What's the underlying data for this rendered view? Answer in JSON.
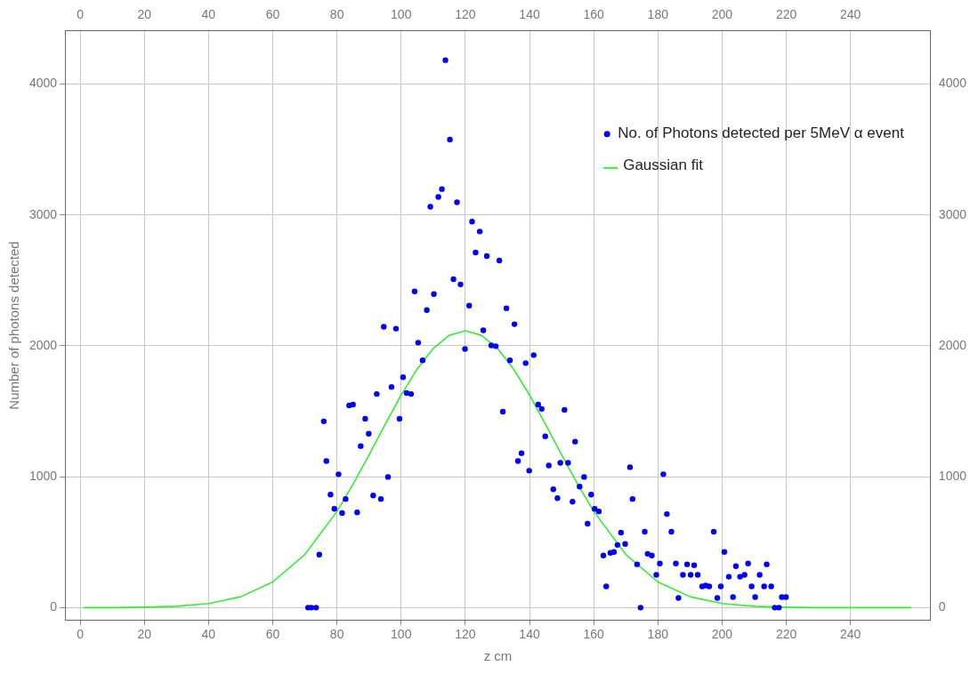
{
  "chart_data": {
    "type": "scatter",
    "xlabel": "z cm",
    "ylabel": "Number of photons detected",
    "xlim": [
      -4.7,
      265
    ],
    "xticks": [
      0,
      20,
      40,
      60,
      80,
      100,
      120,
      140,
      160,
      180,
      200,
      220,
      240
    ],
    "x2lim": [
      -4.7,
      265
    ],
    "x2ticks": [
      0,
      20,
      40,
      60,
      80,
      100,
      120,
      140,
      160,
      180,
      200,
      220,
      240
    ],
    "ylim": [
      -94,
      4405
    ],
    "yticks": [
      0,
      1000,
      2000,
      3000,
      4000
    ],
    "y2lim": [
      -94,
      4405
    ],
    "y2ticks": [
      0,
      1000,
      2000,
      3000,
      4000
    ],
    "grid": true,
    "legend": "top right",
    "marker": "circle",
    "series": [
      {
        "name": "No. of Photons detected per 5MeV α event",
        "type": "scatter",
        "color": "#0000ff",
        "x": [
          71,
          72,
          73.5,
          74.5,
          75.9,
          76.7,
          78,
          79.2,
          80.5,
          81.6,
          82.7,
          83.8,
          85,
          86.3,
          87.4,
          88.8,
          89.9,
          91.3,
          92.4,
          93.7,
          94.6,
          95.9,
          97,
          98.4,
          99.5,
          100.6,
          101.7,
          103.1,
          104.2,
          105.3,
          106.7,
          108,
          109.1,
          110.2,
          111.6,
          112.7,
          113.8,
          115.2,
          116.3,
          117.4,
          118.5,
          119.9,
          121.2,
          122.1,
          123.2,
          124.5,
          125.6,
          126.7,
          128.1,
          129.5,
          130.6,
          131.7,
          132.8,
          133.9,
          135.3,
          136.4,
          137.5,
          138.8,
          139.9,
          141.3,
          142.7,
          143.8,
          144.9,
          146,
          147.4,
          148.7,
          149.6,
          150.9,
          152,
          153.4,
          154.2,
          155.6,
          157,
          158.1,
          159.2,
          160.3,
          161.6,
          163,
          163.9,
          165.2,
          166.3,
          167.4,
          168.5,
          169.8,
          171.3,
          172.1,
          173.5,
          174.6,
          175.9,
          176.8,
          178.1,
          179.5,
          180.6,
          181.7,
          182.8,
          184.2,
          185.6,
          186.4,
          187.8,
          189.1,
          190.2,
          191.3,
          192.4,
          193.8,
          194.9,
          196,
          197.4,
          198.5,
          199.6,
          200.7,
          202.1,
          203.4,
          204.3,
          205.6,
          207,
          208.1,
          209.2,
          210.3,
          211.7,
          213.1,
          213.9,
          215.3,
          216.4,
          217.7,
          218.6,
          219.9
        ],
        "values": [
          0,
          0,
          0,
          405,
          1423,
          1120,
          863,
          755,
          1019,
          722,
          830,
          1545,
          1551,
          728,
          1234,
          1443,
          1329,
          857,
          1632,
          830,
          2145,
          998,
          1686,
          2131,
          1443,
          1760,
          1639,
          1632,
          2415,
          2024,
          1889,
          2273,
          3062,
          2395,
          3137,
          3197,
          4182,
          3575,
          2509,
          3096,
          2469,
          1976,
          2307,
          2948,
          2712,
          2873,
          2118,
          2685,
          2003,
          1997,
          2651,
          1497,
          2287,
          1889,
          2165,
          1120,
          1180,
          1868,
          1046,
          1929,
          1551,
          1518,
          1309,
          1086,
          904,
          836,
          1106,
          1511,
          1106,
          809,
          1268,
          924,
          998,
          641,
          863,
          755,
          735,
          398,
          162,
          418,
          425,
          479,
          573,
          486,
          1073,
          830,
          331,
          0,
          580,
          411,
          398,
          250,
          337,
          1019,
          715,
          580,
          337,
          74,
          250,
          331,
          250,
          324,
          250,
          162,
          169,
          162,
          580,
          74,
          162,
          425,
          236,
          81,
          317,
          236,
          250,
          337,
          162,
          81,
          250,
          162,
          331,
          162,
          0,
          0,
          81,
          81
        ]
      },
      {
        "name": "Gaussian fit",
        "type": "line",
        "color": "#33ee33",
        "marker": "none",
        "x": [
          1,
          10,
          20,
          30,
          40,
          50,
          60,
          70,
          80,
          85,
          90,
          95,
          100,
          105,
          110,
          115,
          120,
          125,
          130,
          135,
          140,
          145,
          150,
          155,
          160,
          170,
          180,
          190,
          200,
          210,
          220,
          230,
          240,
          259
        ],
        "values": [
          0,
          0,
          3,
          10,
          31,
          83,
          196,
          406,
          735,
          942,
          1167,
          1399,
          1624,
          1823,
          1980,
          2080,
          2115,
          2080,
          1980,
          1823,
          1624,
          1399,
          1167,
          942,
          735,
          406,
          196,
          83,
          31,
          10,
          3,
          0,
          0,
          0
        ]
      }
    ]
  }
}
